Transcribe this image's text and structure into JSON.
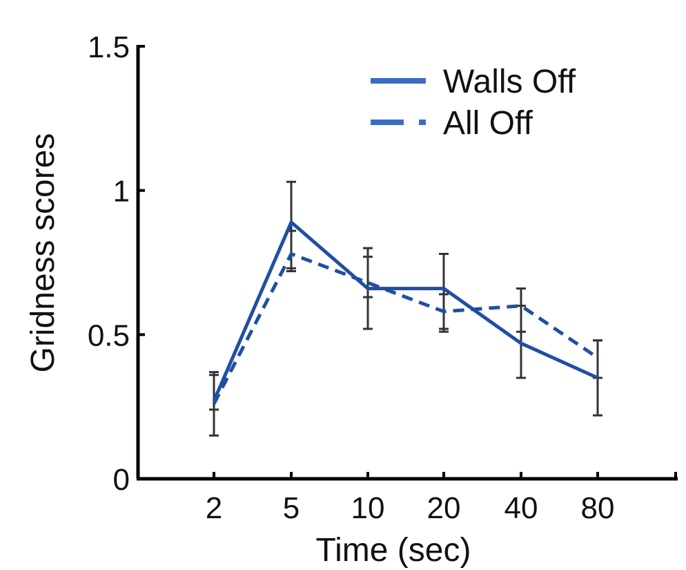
{
  "chart_data": {
    "type": "line",
    "title": "",
    "xlabel": "Time (sec)",
    "ylabel": "Gridness scores",
    "categories": [
      "2",
      "5",
      "10",
      "20",
      "40",
      "80"
    ],
    "ylim": [
      0,
      1.5
    ],
    "yticks": [
      "0",
      "0.5",
      "1",
      "1.5"
    ],
    "grid": false,
    "legend_position": "top-right",
    "series": [
      {
        "name": "Walls Off",
        "style": "solid",
        "color": "#1f4fa3",
        "values": [
          0.27,
          0.89,
          0.66,
          0.66,
          0.47,
          0.35
        ],
        "error_low": [
          0.15,
          0.73,
          0.52,
          0.51,
          0.35,
          0.22
        ],
        "error_high": [
          0.37,
          1.03,
          0.8,
          0.78,
          0.66,
          0.48
        ]
      },
      {
        "name": "All Off",
        "style": "dashed",
        "color": "#1f4fa3",
        "values": [
          0.26,
          0.78,
          0.68,
          0.58,
          0.6,
          0.42
        ],
        "error_low": [
          0.24,
          0.72,
          0.63,
          0.52,
          0.51,
          0.35
        ],
        "error_high": [
          0.36,
          0.86,
          0.77,
          0.64,
          0.6,
          0.48
        ]
      }
    ],
    "legend_color": "#3a6cc4",
    "errorbar_color": "#333333",
    "axis_color": "#000000"
  }
}
